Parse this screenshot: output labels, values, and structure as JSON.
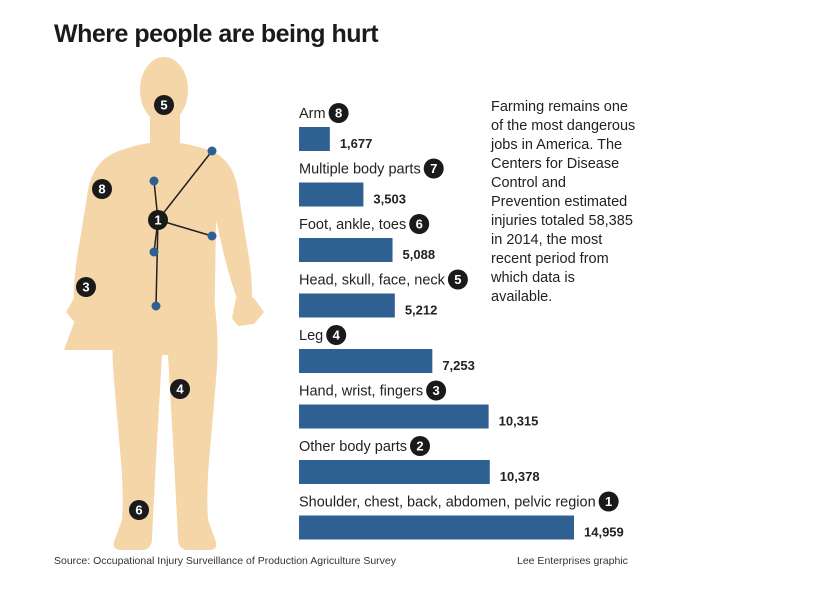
{
  "title": "Where people are being hurt",
  "paragraph": "Farming remains one of the most dangerous jobs in America. The Centers for Disease Control and Prevention estimated injuries totaled 58,385 in 2014, the most recent period from which data is available.",
  "source": "Source: Occupational Injury Surveillance of Production Agriculture Survey",
  "credit": "Lee Enterprises graphic",
  "colors": {
    "bar": "#2e6091",
    "figure": "#f5d6a8",
    "badge": "#1a1a1a",
    "dot": "#2e6091"
  },
  "chart_data": {
    "type": "bar",
    "orientation": "horizontal",
    "categories": [
      "Arm",
      "Multiple body parts",
      "Foot, ankle, toes",
      "Head, skull, face, neck",
      "Leg",
      "Hand, wrist, fingers",
      "Other body parts",
      "Shoulder, chest, back, abdomen, pelvic region"
    ],
    "ranks": [
      8,
      7,
      6,
      5,
      4,
      3,
      2,
      1
    ],
    "values": [
      1677,
      3503,
      5088,
      5212,
      7253,
      10315,
      10378,
      14959
    ],
    "value_labels": [
      "1,677",
      "3,503",
      "5,088",
      "5,212",
      "7,253",
      "10,315",
      "10,378",
      "14,959"
    ],
    "xlim": [
      0,
      14959
    ],
    "grid": false,
    "legend": "none"
  },
  "body_markers": [
    {
      "rank": 5,
      "label": "5"
    },
    {
      "rank": 8,
      "label": "8"
    },
    {
      "rank": 1,
      "label": "1"
    },
    {
      "rank": 3,
      "label": "3"
    },
    {
      "rank": 4,
      "label": "4"
    },
    {
      "rank": 6,
      "label": "6"
    }
  ]
}
